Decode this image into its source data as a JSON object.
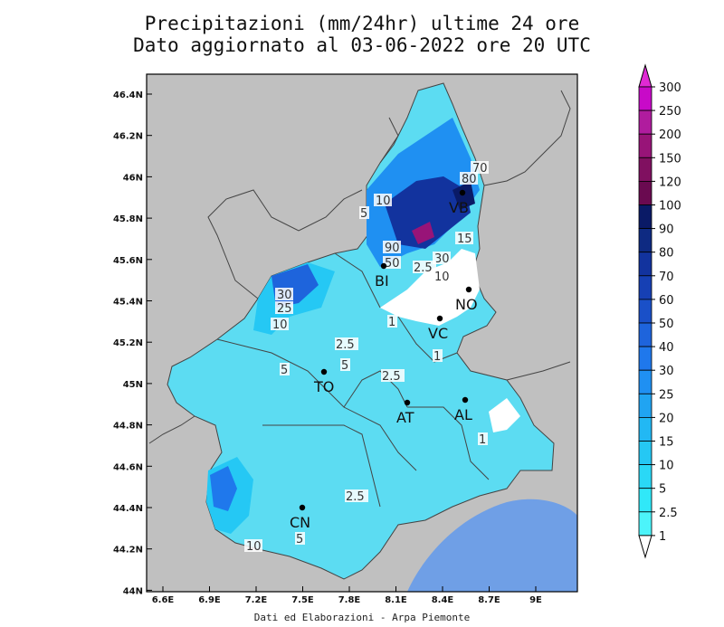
{
  "title_line1": "Precipitazioni (mm/24hr) ultime 24 ore",
  "title_line2": "Dato aggiornato al 03-06-2022 ore 20 UTC",
  "credit": "Dati ed Elaborazioni - Arpa Piemonte",
  "lat_ticks": [
    "46.4N",
    "46.2N",
    "46N",
    "45.8N",
    "45.6N",
    "45.4N",
    "45.2N",
    "45N",
    "44.8N",
    "44.6N",
    "44.4N",
    "44.2N",
    "44N"
  ],
  "lon_ticks": [
    "6.6E",
    "6.9E",
    "7.2E",
    "7.5E",
    "7.8E",
    "8.1E",
    "8.4E",
    "8.7E",
    "9E"
  ],
  "cities": [
    {
      "name": "TO",
      "label": "TO"
    },
    {
      "name": "AT",
      "label": "AT"
    },
    {
      "name": "AL",
      "label": "AL"
    },
    {
      "name": "CN",
      "label": "CN"
    },
    {
      "name": "BI",
      "label": "BI"
    },
    {
      "name": "VC",
      "label": "VC"
    },
    {
      "name": "NO",
      "label": "NO"
    },
    {
      "name": "VB",
      "label": "VB"
    }
  ],
  "contour_labels": [
    "10",
    "5",
    "90",
    "50",
    "30",
    "2.5",
    "15",
    "10",
    "80",
    "70",
    "30",
    "25",
    "10",
    "2.5",
    "5",
    "5",
    "2.5",
    "1",
    "1",
    "1",
    "2.5",
    "10",
    "5",
    "1"
  ],
  "legend": {
    "levels": [
      "300",
      "250",
      "200",
      "150",
      "120",
      "100",
      "90",
      "80",
      "70",
      "60",
      "50",
      "40",
      "30",
      "25",
      "20",
      "15",
      "10",
      "5",
      "2.5",
      "1"
    ],
    "colors": [
      "#c80ac8",
      "#b01c9e",
      "#981478",
      "#801060",
      "#6a0a50",
      "#0a1a66",
      "#0e2a82",
      "#12339e",
      "#1640b4",
      "#1a50c8",
      "#1e64dc",
      "#1f78ec",
      "#1f90f2",
      "#20a4f2",
      "#22b8f4",
      "#25c8f4",
      "#2ad8f6",
      "#30e8f8",
      "#4cf4fa",
      "#ffffff"
    ]
  }
}
